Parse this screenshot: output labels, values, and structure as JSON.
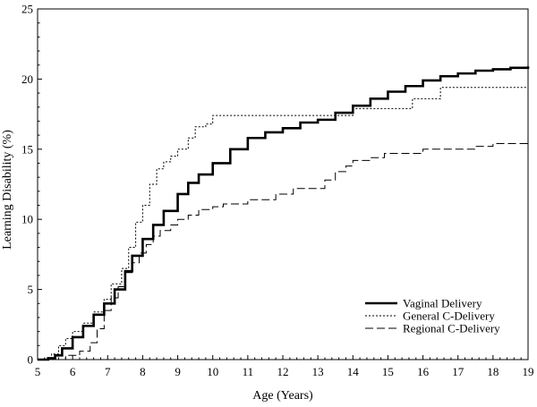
{
  "chart_data": {
    "type": "line",
    "xlabel": "Age (Years)",
    "ylabel": "Learning Disability (%)",
    "xlim": [
      5,
      19
    ],
    "ylim": [
      0,
      25
    ],
    "x_ticks": [
      5,
      6,
      7,
      8,
      9,
      10,
      11,
      12,
      13,
      14,
      15,
      16,
      17,
      18,
      19
    ],
    "y_ticks": [
      0,
      5,
      10,
      15,
      20,
      25
    ],
    "grid": false,
    "legend_position": "bottom-right",
    "series": [
      {
        "name": "Vaginal Delivery",
        "line_style": "solid-thick",
        "color": "#000000",
        "points": [
          [
            5.0,
            0.0
          ],
          [
            5.3,
            0.1
          ],
          [
            5.5,
            0.3
          ],
          [
            5.7,
            0.8
          ],
          [
            6.0,
            1.6
          ],
          [
            6.3,
            2.4
          ],
          [
            6.6,
            3.2
          ],
          [
            6.9,
            4.0
          ],
          [
            7.2,
            5.0
          ],
          [
            7.5,
            6.3
          ],
          [
            7.7,
            7.4
          ],
          [
            8.0,
            8.6
          ],
          [
            8.3,
            9.6
          ],
          [
            8.6,
            10.6
          ],
          [
            9.0,
            11.8
          ],
          [
            9.3,
            12.6
          ],
          [
            9.6,
            13.2
          ],
          [
            10.0,
            14.0
          ],
          [
            10.5,
            15.0
          ],
          [
            11.0,
            15.8
          ],
          [
            11.5,
            16.2
          ],
          [
            12.0,
            16.5
          ],
          [
            12.5,
            16.9
          ],
          [
            13.0,
            17.1
          ],
          [
            13.5,
            17.6
          ],
          [
            14.0,
            18.1
          ],
          [
            14.5,
            18.6
          ],
          [
            15.0,
            19.1
          ],
          [
            15.5,
            19.5
          ],
          [
            16.0,
            19.9
          ],
          [
            16.5,
            20.2
          ],
          [
            17.0,
            20.4
          ],
          [
            17.5,
            20.6
          ],
          [
            18.0,
            20.7
          ],
          [
            18.5,
            20.8
          ],
          [
            19.0,
            20.9
          ]
        ]
      },
      {
        "name": "General C-Delivery",
        "line_style": "dotted",
        "color": "#000000",
        "points": [
          [
            5.0,
            0.0
          ],
          [
            5.4,
            0.4
          ],
          [
            5.6,
            1.0
          ],
          [
            5.8,
            1.5
          ],
          [
            6.0,
            2.0
          ],
          [
            6.3,
            2.6
          ],
          [
            6.6,
            3.4
          ],
          [
            6.9,
            4.3
          ],
          [
            7.1,
            5.4
          ],
          [
            7.4,
            6.5
          ],
          [
            7.6,
            8.0
          ],
          [
            7.8,
            9.8
          ],
          [
            8.0,
            11.0
          ],
          [
            8.2,
            12.5
          ],
          [
            8.4,
            13.6
          ],
          [
            8.6,
            14.1
          ],
          [
            8.8,
            14.5
          ],
          [
            9.0,
            15.0
          ],
          [
            9.3,
            15.8
          ],
          [
            9.5,
            16.6
          ],
          [
            9.8,
            16.8
          ],
          [
            10.0,
            17.4
          ],
          [
            11.0,
            17.4
          ],
          [
            12.0,
            17.4
          ],
          [
            13.0,
            17.4
          ],
          [
            13.5,
            17.4
          ],
          [
            13.9,
            17.4
          ],
          [
            14.0,
            17.9
          ],
          [
            15.0,
            17.9
          ],
          [
            15.6,
            17.9
          ],
          [
            15.7,
            18.6
          ],
          [
            16.4,
            18.6
          ],
          [
            16.5,
            19.4
          ],
          [
            17.0,
            19.4
          ],
          [
            18.0,
            19.4
          ],
          [
            19.0,
            19.4
          ]
        ]
      },
      {
        "name": "Regional C-Delivery",
        "line_style": "dashed",
        "color": "#000000",
        "points": [
          [
            5.0,
            0.0
          ],
          [
            5.5,
            0.0
          ],
          [
            5.8,
            0.3
          ],
          [
            6.2,
            0.6
          ],
          [
            6.5,
            1.2
          ],
          [
            6.7,
            2.2
          ],
          [
            6.9,
            3.5
          ],
          [
            7.1,
            4.4
          ],
          [
            7.3,
            5.2
          ],
          [
            7.5,
            6.2
          ],
          [
            7.7,
            6.9
          ],
          [
            7.9,
            7.6
          ],
          [
            8.1,
            8.2
          ],
          [
            8.3,
            8.8
          ],
          [
            8.5,
            9.2
          ],
          [
            8.8,
            9.6
          ],
          [
            9.0,
            10.0
          ],
          [
            9.3,
            10.3
          ],
          [
            9.6,
            10.7
          ],
          [
            10.0,
            10.9
          ],
          [
            10.3,
            11.1
          ],
          [
            11.0,
            11.4
          ],
          [
            11.8,
            11.8
          ],
          [
            12.3,
            12.2
          ],
          [
            13.0,
            12.2
          ],
          [
            13.2,
            12.8
          ],
          [
            13.5,
            13.4
          ],
          [
            13.8,
            13.8
          ],
          [
            14.0,
            14.2
          ],
          [
            14.5,
            14.4
          ],
          [
            14.9,
            14.7
          ],
          [
            15.5,
            14.7
          ],
          [
            16.0,
            15.0
          ],
          [
            17.0,
            15.0
          ],
          [
            17.5,
            15.2
          ],
          [
            18.0,
            15.4
          ],
          [
            19.0,
            15.4
          ]
        ]
      }
    ]
  }
}
